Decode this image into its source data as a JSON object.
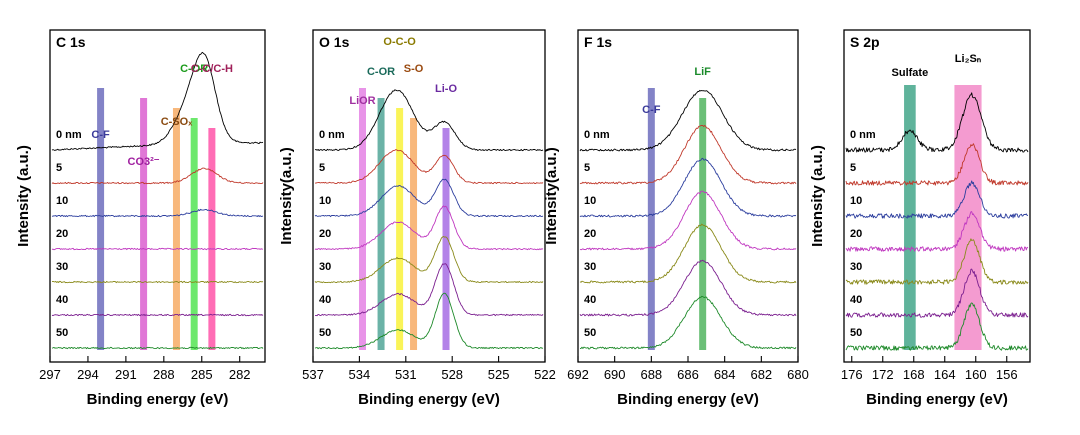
{
  "chart_data": [
    {
      "type": "line",
      "title": "C 1s",
      "xlabel": "Binding energy (eV)",
      "ylabel": "Intensity (a.u.)",
      "xlim": [
        297,
        280
      ],
      "ticks": [
        297,
        294,
        291,
        288,
        285,
        282
      ],
      "depth_labels": [
        "0 nm",
        "5",
        "10",
        "20",
        "30",
        "40",
        "50"
      ],
      "series": [
        {
          "name": "0 nm",
          "color": "#000000",
          "peaks": [
            {
              "center": 284.8,
              "amp": 1.0,
              "width": 0.9
            },
            {
              "center": 286.3,
              "amp": 0.35,
              "width": 1.0
            }
          ],
          "tail": 0.3
        },
        {
          "name": "5",
          "color": "#c0392b",
          "peaks": [
            {
              "center": 284.8,
              "amp": 0.18,
              "width": 1.0
            }
          ],
          "tail": 0
        },
        {
          "name": "10",
          "color": "#2c3e9e",
          "peaks": [
            {
              "center": 284.8,
              "amp": 0.08,
              "width": 1.0
            }
          ],
          "tail": 0
        },
        {
          "name": "20",
          "color": "#c038c0",
          "peaks": [],
          "tail": 0
        },
        {
          "name": "30",
          "color": "#8a8a1a",
          "peaks": [],
          "tail": 0
        },
        {
          "name": "40",
          "color": "#7b1f8f",
          "peaks": [],
          "tail": 0
        },
        {
          "name": "50",
          "color": "#1e8a2a",
          "peaks": [],
          "tail": 0
        }
      ],
      "bands": [
        {
          "label": "C-F",
          "x": 293.0,
          "color": "#5a5ab4",
          "label_color": "#3a3a9a"
        },
        {
          "label": "CO3²⁻",
          "x": 289.6,
          "color": "#d64ac8",
          "label_color": "#a020a0"
        },
        {
          "label": "C-SOₓ",
          "x": 287.0,
          "color": "#f5a050",
          "label_color": "#8a4a10"
        },
        {
          "label": "C-OR",
          "x": 285.6,
          "color": "#3ce03c",
          "label_color": "#1a9a1a"
        },
        {
          "label": "C-C/C-H",
          "x": 284.2,
          "color": "#ff3c9c",
          "label_color": "#a0205a"
        }
      ]
    },
    {
      "type": "line",
      "title": "O 1s",
      "xlabel": "Binding energy (eV)",
      "ylabel": "Intensity(a.u.)",
      "xlim": [
        537,
        522
      ],
      "ticks": [
        537,
        534,
        531,
        528,
        525,
        522
      ],
      "depth_labels": [
        "0 nm",
        "5",
        "10",
        "20",
        "30",
        "40",
        "50"
      ],
      "series": [
        {
          "name": "0 nm",
          "color": "#000000",
          "peaks": [
            {
              "center": 531.6,
              "amp": 1.0,
              "width": 1.1
            },
            {
              "center": 528.5,
              "amp": 0.45,
              "width": 0.7
            }
          ],
          "tail": 0
        },
        {
          "name": "5",
          "color": "#c0392b",
          "peaks": [
            {
              "center": 531.6,
              "amp": 0.55,
              "width": 1.1
            },
            {
              "center": 528.5,
              "amp": 0.45,
              "width": 0.6
            }
          ],
          "tail": 0
        },
        {
          "name": "10",
          "color": "#2c3e9e",
          "peaks": [
            {
              "center": 531.5,
              "amp": 0.5,
              "width": 1.1
            },
            {
              "center": 528.5,
              "amp": 0.6,
              "width": 0.6
            }
          ],
          "tail": 0
        },
        {
          "name": "20",
          "color": "#c038c0",
          "peaks": [
            {
              "center": 531.5,
              "amp": 0.45,
              "width": 1.1
            },
            {
              "center": 528.5,
              "amp": 0.7,
              "width": 0.6
            }
          ],
          "tail": 0
        },
        {
          "name": "30",
          "color": "#8a8a1a",
          "peaks": [
            {
              "center": 531.5,
              "amp": 0.4,
              "width": 1.1
            },
            {
              "center": 528.5,
              "amp": 0.75,
              "width": 0.6
            }
          ],
          "tail": 0
        },
        {
          "name": "40",
          "color": "#7b1f8f",
          "peaks": [
            {
              "center": 531.5,
              "amp": 0.35,
              "width": 1.1
            },
            {
              "center": 528.5,
              "amp": 0.85,
              "width": 0.6
            }
          ],
          "tail": 0
        },
        {
          "name": "50",
          "color": "#1e8a2a",
          "peaks": [
            {
              "center": 531.5,
              "amp": 0.3,
              "width": 1.1
            },
            {
              "center": 528.5,
              "amp": 0.9,
              "width": 0.6
            }
          ],
          "tail": 0
        }
      ],
      "bands": [
        {
          "label": "LiOR",
          "x": 533.8,
          "color": "#e070e0",
          "label_color": "#a030a0"
        },
        {
          "label": "C-OR",
          "x": 532.6,
          "color": "#3a9a8a",
          "label_color": "#1a6a5a"
        },
        {
          "label": "O-C-O",
          "x": 531.4,
          "color": "#f8f020",
          "label_color": "#8a7a00"
        },
        {
          "label": "S-O",
          "x": 530.5,
          "color": "#f5a050",
          "label_color": "#9a4a10"
        },
        {
          "label": "Li-O",
          "x": 528.4,
          "color": "#9a5ae0",
          "label_color": "#6a2aa0"
        }
      ]
    },
    {
      "type": "line",
      "title": "F 1s",
      "xlabel": "Binding energy (eV)",
      "ylabel": "Intensity(a.u.)",
      "xlim": [
        692,
        680
      ],
      "ticks": [
        692,
        690,
        688,
        686,
        684,
        682,
        680
      ],
      "depth_labels": [
        "0 nm",
        "5",
        "10",
        "20",
        "30",
        "40",
        "50"
      ],
      "series": [
        {
          "name": "0 nm",
          "color": "#000000",
          "peaks": [
            {
              "center": 685.2,
              "amp": 1.0,
              "width": 1.1
            }
          ],
          "tail": 0
        },
        {
          "name": "5",
          "color": "#c0392b",
          "peaks": [
            {
              "center": 685.2,
              "amp": 0.95,
              "width": 1.0
            }
          ],
          "tail": 0
        },
        {
          "name": "10",
          "color": "#2c3e9e",
          "peaks": [
            {
              "center": 685.2,
              "amp": 0.95,
              "width": 1.0
            }
          ],
          "tail": 0
        },
        {
          "name": "20",
          "color": "#c038c0",
          "peaks": [
            {
              "center": 685.2,
              "amp": 0.95,
              "width": 1.0
            }
          ],
          "tail": 0
        },
        {
          "name": "30",
          "color": "#8a8a1a",
          "peaks": [
            {
              "center": 685.2,
              "amp": 0.95,
              "width": 1.0
            }
          ],
          "tail": 0
        },
        {
          "name": "40",
          "color": "#7b1f8f",
          "peaks": [
            {
              "center": 685.2,
              "amp": 0.9,
              "width": 1.0
            }
          ],
          "tail": 0
        },
        {
          "name": "50",
          "color": "#1e8a2a",
          "peaks": [
            {
              "center": 685.2,
              "amp": 0.85,
              "width": 1.0
            }
          ],
          "tail": 0
        }
      ],
      "bands": [
        {
          "label": "C-F",
          "x": 688.0,
          "color": "#5a5ab4",
          "label_color": "#3a3a9a"
        },
        {
          "label": "LiF",
          "x": 685.2,
          "color": "#3aaa4a",
          "label_color": "#1a8a2a"
        }
      ]
    },
    {
      "type": "line",
      "title": "S 2p",
      "xlabel": "Binding energy (eV)",
      "ylabel": "Intensity (a.u.)",
      "xlim": [
        177,
        153
      ],
      "ticks": [
        176,
        172,
        168,
        164,
        160,
        156
      ],
      "depth_labels": [
        "0 nm",
        "5",
        "10",
        "20",
        "30",
        "40",
        "50"
      ],
      "series": [
        {
          "name": "0 nm",
          "color": "#000000",
          "peaks": [
            {
              "center": 168.5,
              "amp": 0.35,
              "width": 1.0
            },
            {
              "center": 160.5,
              "amp": 1.0,
              "width": 1.2
            }
          ],
          "tail": 0
        },
        {
          "name": "5",
          "color": "#c0392b",
          "peaks": [
            {
              "center": 160.5,
              "amp": 0.7,
              "width": 1.0
            }
          ],
          "tail": 0
        },
        {
          "name": "10",
          "color": "#2c3e9e",
          "peaks": [
            {
              "center": 160.5,
              "amp": 0.6,
              "width": 1.0
            }
          ],
          "tail": 0
        },
        {
          "name": "20",
          "color": "#c038c0",
          "peaks": [
            {
              "center": 160.5,
              "amp": 0.65,
              "width": 1.0
            }
          ],
          "tail": 0
        },
        {
          "name": "30",
          "color": "#8a8a1a",
          "peaks": [
            {
              "center": 160.5,
              "amp": 0.75,
              "width": 1.0
            }
          ],
          "tail": 0
        },
        {
          "name": "40",
          "color": "#7b1f8f",
          "peaks": [
            {
              "center": 160.5,
              "amp": 0.8,
              "width": 1.0
            }
          ],
          "tail": 0
        },
        {
          "name": "50",
          "color": "#1e8a2a",
          "peaks": [
            {
              "center": 160.5,
              "amp": 0.8,
              "width": 1.0
            }
          ],
          "tail": 0
        }
      ],
      "bands": [
        {
          "label": "Sulfate",
          "x": 168.5,
          "x_width": 1.5,
          "color": "#2a9a7a",
          "label_color": "#000000"
        },
        {
          "label": "Li₂Sₙ",
          "x": 161.0,
          "x_width": 3.5,
          "color": "#f07ac0",
          "label_color": "#000000"
        }
      ]
    }
  ]
}
